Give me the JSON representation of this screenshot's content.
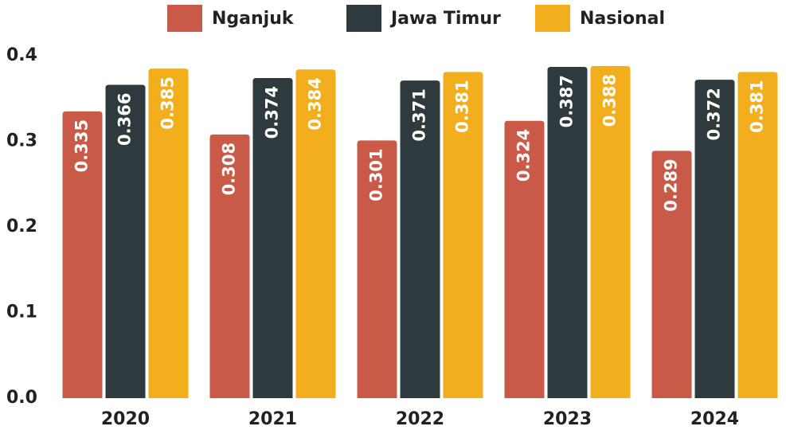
{
  "chart_data": {
    "type": "bar",
    "categories": [
      "2020",
      "2021",
      "2022",
      "2023",
      "2024"
    ],
    "series": [
      {
        "name": "Nganjuk",
        "color": "#c95a47",
        "values": [
          0.335,
          0.308,
          0.301,
          0.324,
          0.289
        ]
      },
      {
        "name": "Jawa Timur",
        "color": "#2f3a3e",
        "values": [
          0.366,
          0.374,
          0.371,
          0.387,
          0.372
        ]
      },
      {
        "name": "Nasional",
        "color": "#f2ae1c",
        "values": [
          0.385,
          0.384,
          0.381,
          0.388,
          0.381
        ]
      }
    ],
    "ylim": [
      0,
      0.4
    ],
    "yticks": [
      {
        "value": 0,
        "label": "0.0"
      },
      0.1,
      0.2,
      0.3,
      0.4
    ],
    "grid": false,
    "legend": "top"
  }
}
